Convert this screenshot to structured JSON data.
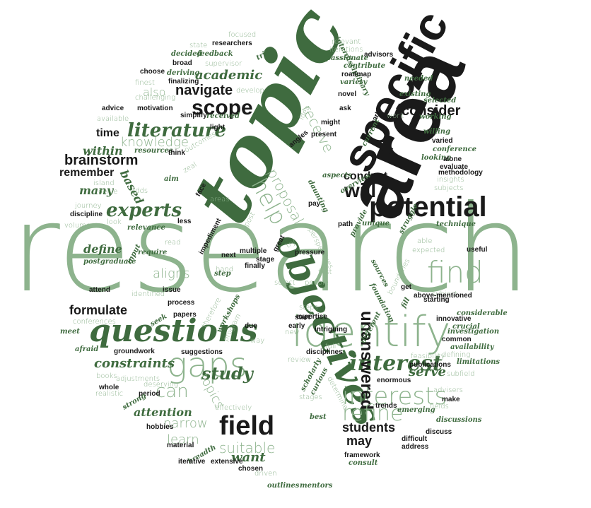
{
  "colors": {
    "light": "#8db38d",
    "dark": "#3f6b3f",
    "black": "#1a1a1a"
  },
  "words": [
    {
      "text": "research",
      "tone": "light",
      "font": "s"
    },
    {
      "text": "topic",
      "tone": "dark",
      "font": "i"
    },
    {
      "text": "area",
      "tone": "black",
      "font": "b"
    },
    {
      "text": "specific",
      "tone": "black",
      "font": "b"
    },
    {
      "text": "potential",
      "tone": "black",
      "font": "b"
    },
    {
      "text": "identify",
      "tone": "light",
      "font": "s"
    },
    {
      "text": "objectives",
      "tone": "dark",
      "font": "i"
    },
    {
      "text": "questions",
      "tone": "dark",
      "font": "i"
    },
    {
      "text": "gaps",
      "tone": "light",
      "font": "s"
    },
    {
      "text": "field",
      "tone": "black",
      "font": "b"
    },
    {
      "text": "find",
      "tone": "light",
      "font": "s"
    },
    {
      "text": "interests",
      "tone": "light",
      "font": "s"
    },
    {
      "text": "interest",
      "tone": "dark",
      "font": "i"
    },
    {
      "text": "unanswered",
      "tone": "black",
      "font": "b"
    },
    {
      "text": "refine",
      "tone": "light",
      "font": "s"
    },
    {
      "text": "help",
      "tone": "light",
      "font": "s"
    },
    {
      "text": "will",
      "tone": "black",
      "font": "b"
    },
    {
      "text": "scope",
      "tone": "black",
      "font": "b"
    },
    {
      "text": "literature",
      "tone": "dark",
      "font": "i"
    },
    {
      "text": "experts",
      "tone": "dark",
      "font": "i"
    },
    {
      "text": "consider",
      "tone": "black",
      "font": "b"
    },
    {
      "text": "navigate",
      "tone": "black",
      "font": "b"
    },
    {
      "text": "brainstorm",
      "tone": "black",
      "font": "b"
    },
    {
      "text": "formulate",
      "tone": "black",
      "font": "b"
    },
    {
      "text": "study",
      "tone": "dark",
      "font": "i"
    },
    {
      "text": "students",
      "tone": "black",
      "font": "b"
    },
    {
      "text": "suitable",
      "tone": "light",
      "font": "s"
    },
    {
      "text": "can",
      "tone": "light",
      "font": "s"
    },
    {
      "text": "aligns",
      "tone": "light",
      "font": "s"
    },
    {
      "text": "proposal",
      "tone": "light",
      "font": "s"
    },
    {
      "text": "receive",
      "tone": "light",
      "font": "s"
    },
    {
      "text": "topics",
      "tone": "light",
      "font": "s"
    },
    {
      "text": "may",
      "tone": "black",
      "font": "b"
    },
    {
      "text": "want",
      "tone": "dark",
      "font": "i"
    },
    {
      "text": "learn",
      "tone": "light",
      "font": "s"
    },
    {
      "text": "narrow",
      "tone": "light",
      "font": "s"
    },
    {
      "text": "knowledge",
      "tone": "light",
      "font": "s"
    },
    {
      "text": "remember",
      "tone": "black",
      "font": "b"
    },
    {
      "text": "conduct",
      "tone": "black",
      "font": "b"
    },
    {
      "text": "constraints",
      "tone": "dark",
      "font": "i"
    },
    {
      "text": "serve",
      "tone": "dark",
      "font": "i"
    },
    {
      "text": "time",
      "tone": "black",
      "font": "b"
    },
    {
      "text": "academic",
      "tone": "dark",
      "font": "i"
    },
    {
      "text": "also",
      "tone": "light",
      "font": "s"
    },
    {
      "text": "within",
      "tone": "dark",
      "font": "i"
    },
    {
      "text": "many",
      "tone": "dark",
      "font": "i"
    },
    {
      "text": "based",
      "tone": "dark",
      "font": "i"
    },
    {
      "text": "define",
      "tone": "dark",
      "font": "i"
    },
    {
      "text": "attention",
      "tone": "dark",
      "font": "i"
    },
    {
      "text": "focused",
      "tone": "light",
      "font": "s"
    },
    {
      "text": "state",
      "tone": "light",
      "font": "s"
    },
    {
      "text": "researchers",
      "tone": "black",
      "font": "b"
    },
    {
      "text": "decided",
      "tone": "dark",
      "font": "i"
    },
    {
      "text": "feedback",
      "tone": "dark",
      "font": "i"
    },
    {
      "text": "tries",
      "tone": "dark",
      "font": "i"
    },
    {
      "text": "relevant",
      "tone": "light",
      "font": "s"
    },
    {
      "text": "iterations",
      "tone": "light",
      "font": "s"
    },
    {
      "text": "advisors",
      "tone": "black",
      "font": "b"
    },
    {
      "text": "broad",
      "tone": "black",
      "font": "b"
    },
    {
      "text": "supervisor",
      "tone": "light",
      "font": "s"
    },
    {
      "text": "passionate",
      "tone": "dark",
      "font": "i"
    },
    {
      "text": "contribute",
      "tone": "dark",
      "font": "i"
    },
    {
      "text": "choose",
      "tone": "black",
      "font": "b"
    },
    {
      "text": "deriving",
      "tone": "dark",
      "font": "i"
    },
    {
      "text": "finalizing",
      "tone": "black",
      "font": "b"
    },
    {
      "text": "develop",
      "tone": "light",
      "font": "s"
    },
    {
      "text": "interdisciplinary",
      "tone": "dark",
      "font": "i"
    },
    {
      "text": "roadmap",
      "tone": "black",
      "font": "b"
    },
    {
      "text": "variety",
      "tone": "dark",
      "font": "i"
    },
    {
      "text": "needed",
      "tone": "dark",
      "font": "i"
    },
    {
      "text": "finest",
      "tone": "light",
      "font": "s"
    },
    {
      "text": "challenging",
      "tone": "light",
      "font": "s"
    },
    {
      "text": "novel",
      "tone": "black",
      "font": "b"
    },
    {
      "text": "existing",
      "tone": "dark",
      "font": "i"
    },
    {
      "text": "selected",
      "tone": "dark",
      "font": "i"
    },
    {
      "text": "advice",
      "tone": "black",
      "font": "b"
    },
    {
      "text": "motivation",
      "tone": "black",
      "font": "b"
    },
    {
      "text": "simplify",
      "tone": "black",
      "font": "b"
    },
    {
      "text": "received",
      "tone": "dark",
      "font": "i"
    },
    {
      "text": "idea",
      "tone": "light",
      "font": "s"
    },
    {
      "text": "ask",
      "tone": "black",
      "font": "b"
    },
    {
      "text": "work",
      "tone": "light",
      "font": "s"
    },
    {
      "text": "working",
      "tone": "dark",
      "font": "i"
    },
    {
      "text": "available",
      "tone": "light",
      "font": "s"
    },
    {
      "text": "light",
      "tone": "black",
      "font": "b"
    },
    {
      "text": "might",
      "tone": "black",
      "font": "b"
    },
    {
      "text": "clearly",
      "tone": "black",
      "font": "b"
    },
    {
      "text": "willing",
      "tone": "dark",
      "font": "i"
    },
    {
      "text": "present",
      "tone": "black",
      "font": "b"
    },
    {
      "text": "current",
      "tone": "dark",
      "font": "i"
    },
    {
      "text": "varied",
      "tone": "black",
      "font": "b"
    },
    {
      "text": "angles",
      "tone": "black",
      "font": "b"
    },
    {
      "text": "conference",
      "tone": "dark",
      "font": "i"
    },
    {
      "text": "outcomes",
      "tone": "light",
      "font": "s"
    },
    {
      "text": "resources",
      "tone": "dark",
      "font": "i"
    },
    {
      "text": "think",
      "tone": "black",
      "font": "b"
    },
    {
      "text": "looking",
      "tone": "dark",
      "font": "i"
    },
    {
      "text": "alone",
      "tone": "black",
      "font": "b"
    },
    {
      "text": "evaluate",
      "tone": "black",
      "font": "b"
    },
    {
      "text": "methodology",
      "tone": "black",
      "font": "b"
    },
    {
      "text": "zeal",
      "tone": "light",
      "font": "s"
    },
    {
      "text": "aspects",
      "tone": "dark",
      "font": "i"
    },
    {
      "text": "overview",
      "tone": "dark",
      "font": "i"
    },
    {
      "text": "insights",
      "tone": "light",
      "font": "s"
    },
    {
      "text": "subjects",
      "tone": "light",
      "font": "s"
    },
    {
      "text": "aim",
      "tone": "dark",
      "font": "i"
    },
    {
      "text": "island",
      "tone": "light",
      "font": "s"
    },
    {
      "text": "delve",
      "tone": "light",
      "font": "s"
    },
    {
      "text": "adds",
      "tone": "light",
      "font": "s"
    },
    {
      "text": "journey",
      "tone": "light",
      "font": "s"
    },
    {
      "text": "face",
      "tone": "black",
      "font": "b"
    },
    {
      "text": "areas",
      "tone": "light",
      "font": "s"
    },
    {
      "text": "pay",
      "tone": "black",
      "font": "b"
    },
    {
      "text": "daunting",
      "tone": "dark",
      "font": "i"
    },
    {
      "text": "provide",
      "tone": "dark",
      "font": "i"
    },
    {
      "text": "discipline",
      "tone": "black",
      "font": "b"
    },
    {
      "text": "look",
      "tone": "light",
      "font": "s"
    },
    {
      "text": "relevance",
      "tone": "dark",
      "font": "i"
    },
    {
      "text": "less",
      "tone": "black",
      "font": "b"
    },
    {
      "text": "post",
      "tone": "light",
      "font": "s"
    },
    {
      "text": "path",
      "tone": "black",
      "font": "b"
    },
    {
      "text": "unique",
      "tone": "dark",
      "font": "i"
    },
    {
      "text": "struggle",
      "tone": "dark",
      "font": "i"
    },
    {
      "text": "technique",
      "tone": "dark",
      "font": "i"
    },
    {
      "text": "volume",
      "tone": "light",
      "font": "s"
    },
    {
      "text": "impediment",
      "tone": "black",
      "font": "b"
    },
    {
      "text": "read",
      "tone": "light",
      "font": "s"
    },
    {
      "text": "great",
      "tone": "black",
      "font": "b"
    },
    {
      "text": "try",
      "tone": "light",
      "font": "s"
    },
    {
      "text": "perspectives",
      "tone": "light",
      "font": "s"
    },
    {
      "text": "able",
      "tone": "light",
      "font": "s"
    },
    {
      "text": "useful",
      "tone": "black",
      "font": "b"
    },
    {
      "text": "input",
      "tone": "dark",
      "font": "i"
    },
    {
      "text": "require",
      "tone": "dark",
      "font": "i"
    },
    {
      "text": "multiple",
      "tone": "black",
      "font": "b"
    },
    {
      "text": "pressure",
      "tone": "black",
      "font": "b"
    },
    {
      "text": "expected",
      "tone": "light",
      "font": "s"
    },
    {
      "text": "next",
      "tone": "black",
      "font": "b"
    },
    {
      "text": "postgraduate",
      "tone": "dark",
      "font": "i"
    },
    {
      "text": "step",
      "tone": "dark",
      "font": "i"
    },
    {
      "text": "hand",
      "tone": "light",
      "font": "s"
    },
    {
      "text": "select",
      "tone": "light",
      "font": "s"
    },
    {
      "text": "first",
      "tone": "light",
      "font": "s"
    },
    {
      "text": "sources",
      "tone": "dark",
      "font": "i"
    },
    {
      "text": "boundaries",
      "tone": "light",
      "font": "s"
    },
    {
      "text": "finally",
      "tone": "black",
      "font": "b"
    },
    {
      "text": "stage",
      "tone": "black",
      "font": "b"
    },
    {
      "text": "people",
      "tone": "light",
      "font": "s"
    },
    {
      "text": "get",
      "tone": "black",
      "font": "b"
    },
    {
      "text": "attend",
      "tone": "black",
      "font": "b"
    },
    {
      "text": "issue",
      "tone": "black",
      "font": "b"
    },
    {
      "text": "identified",
      "tone": "light",
      "font": "s"
    },
    {
      "text": "subject",
      "tone": "light",
      "font": "s"
    },
    {
      "text": "fill",
      "tone": "dark",
      "font": "i"
    },
    {
      "text": "above-mentioned",
      "tone": "black",
      "font": "b"
    },
    {
      "text": "process",
      "tone": "black",
      "font": "b"
    },
    {
      "text": "therefore",
      "tone": "light",
      "font": "s"
    },
    {
      "text": "expertise",
      "tone": "black",
      "font": "b"
    },
    {
      "text": "foundation",
      "tone": "dark",
      "font": "i"
    },
    {
      "text": "starting",
      "tone": "black",
      "font": "b"
    },
    {
      "text": "papers",
      "tone": "black",
      "font": "b"
    },
    {
      "text": "workshops",
      "tone": "dark",
      "font": "i"
    },
    {
      "text": "start",
      "tone": "black",
      "font": "b"
    },
    {
      "text": "early",
      "tone": "black",
      "font": "b"
    },
    {
      "text": "considerable",
      "tone": "dark",
      "font": "i"
    },
    {
      "text": "seek",
      "tone": "dark",
      "font": "i"
    },
    {
      "text": "program",
      "tone": "light",
      "font": "s"
    },
    {
      "text": "steps",
      "tone": "light",
      "font": "s"
    },
    {
      "text": "different",
      "tone": "dark",
      "font": "i"
    },
    {
      "text": "innovative",
      "tone": "black",
      "font": "b"
    },
    {
      "text": "crucial",
      "tone": "dark",
      "font": "i"
    },
    {
      "text": "conferences",
      "tone": "light",
      "font": "s"
    },
    {
      "text": "due",
      "tone": "black",
      "font": "b"
    },
    {
      "text": "new",
      "tone": "light",
      "font": "s"
    },
    {
      "text": "intriguing",
      "tone": "black",
      "font": "b"
    },
    {
      "text": "investigation",
      "tone": "dark",
      "font": "i"
    },
    {
      "text": "meet",
      "tone": "dark",
      "font": "i"
    },
    {
      "text": "way",
      "tone": "light",
      "font": "s"
    },
    {
      "text": "common",
      "tone": "black",
      "font": "b"
    },
    {
      "text": "suggestions",
      "tone": "black",
      "font": "b"
    },
    {
      "text": "availability",
      "tone": "dark",
      "font": "i"
    },
    {
      "text": "afraid",
      "tone": "dark",
      "font": "i"
    },
    {
      "text": "groundwork",
      "tone": "black",
      "font": "b"
    },
    {
      "text": "full",
      "tone": "light",
      "font": "s"
    },
    {
      "text": "disciplines",
      "tone": "black",
      "font": "b"
    },
    {
      "text": "defining",
      "tone": "light",
      "font": "s"
    },
    {
      "text": "feasibility",
      "tone": "light",
      "font": "s"
    },
    {
      "text": "publications",
      "tone": "black",
      "font": "b"
    },
    {
      "text": "limitations",
      "tone": "dark",
      "font": "i"
    },
    {
      "text": "review",
      "tone": "light",
      "font": "s"
    },
    {
      "text": "scholarly",
      "tone": "dark",
      "font": "i"
    },
    {
      "text": "subfield",
      "tone": "light",
      "font": "s"
    },
    {
      "text": "books",
      "tone": "light",
      "font": "s"
    },
    {
      "text": "adjustments",
      "tone": "light",
      "font": "s"
    },
    {
      "text": "whole",
      "tone": "black",
      "font": "b"
    },
    {
      "text": "deserving",
      "tone": "light",
      "font": "s"
    },
    {
      "text": "curious",
      "tone": "dark",
      "font": "i"
    },
    {
      "text": "determine",
      "tone": "light",
      "font": "s"
    },
    {
      "text": "enormous",
      "tone": "black",
      "font": "b"
    },
    {
      "text": "stages",
      "tone": "light",
      "font": "s"
    },
    {
      "text": "advisers",
      "tone": "light",
      "font": "s"
    },
    {
      "text": "realistic",
      "tone": "light",
      "font": "s"
    },
    {
      "text": "period",
      "tone": "black",
      "font": "b"
    },
    {
      "text": "make",
      "tone": "black",
      "font": "b"
    },
    {
      "text": "strong",
      "tone": "dark",
      "font": "i"
    },
    {
      "text": "trends",
      "tone": "black",
      "font": "b"
    },
    {
      "text": "emerging",
      "tone": "dark",
      "font": "i"
    },
    {
      "text": "fields",
      "tone": "light",
      "font": "s"
    },
    {
      "text": "effectively",
      "tone": "light",
      "font": "s"
    },
    {
      "text": "discussions",
      "tone": "dark",
      "font": "i"
    },
    {
      "text": "hobbies",
      "tone": "black",
      "font": "b"
    },
    {
      "text": "best",
      "tone": "dark",
      "font": "i"
    },
    {
      "text": "discuss",
      "tone": "black",
      "font": "b"
    },
    {
      "text": "material",
      "tone": "black",
      "font": "b"
    },
    {
      "text": "difficult",
      "tone": "black",
      "font": "b"
    },
    {
      "text": "address",
      "tone": "black",
      "font": "b"
    },
    {
      "text": "breadth",
      "tone": "dark",
      "font": "i"
    },
    {
      "text": "extensive",
      "tone": "black",
      "font": "b"
    },
    {
      "text": "framework",
      "tone": "black",
      "font": "b"
    },
    {
      "text": "iterative",
      "tone": "black",
      "font": "b"
    },
    {
      "text": "chosen",
      "tone": "black",
      "font": "b"
    },
    {
      "text": "consult",
      "tone": "dark",
      "font": "i"
    },
    {
      "text": "driven",
      "tone": "light",
      "font": "s"
    },
    {
      "text": "outlines",
      "tone": "dark",
      "font": "i"
    },
    {
      "text": "mentors",
      "tone": "dark",
      "font": "i"
    }
  ]
}
